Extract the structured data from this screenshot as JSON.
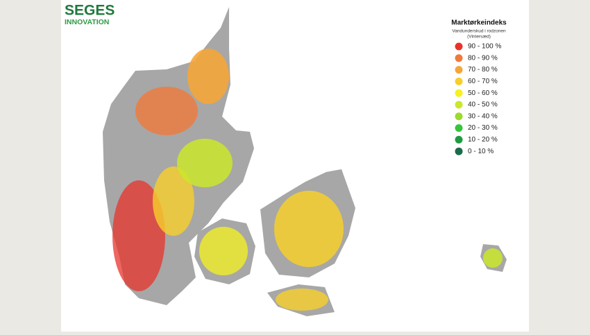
{
  "logo": {
    "name": "SEGES",
    "sub": "INNOVATION"
  },
  "legend": {
    "title": "Marktørkeindeks",
    "subtitle": "Vandunderskud i rodzonen",
    "note": "(Vintersæd)",
    "items": [
      {
        "label": "90 - 100 %",
        "color": "#e8332b"
      },
      {
        "label": "80 - 90 %",
        "color": "#f07a3c"
      },
      {
        "label": "70 - 80 %",
        "color": "#f5a63a"
      },
      {
        "label": "60 - 70 %",
        "color": "#f7cf2b"
      },
      {
        "label": "50 - 60 %",
        "color": "#f6f11f"
      },
      {
        "label": "40 - 50 %",
        "color": "#cbe62b"
      },
      {
        "label": "30 - 40 %",
        "color": "#9cdb2b"
      },
      {
        "label": "20 - 30 %",
        "color": "#35c43c"
      },
      {
        "label": "10 - 20 %",
        "color": "#1f9a42"
      },
      {
        "label": "0 - 10 %",
        "color": "#1c6b4c"
      }
    ]
  }
}
